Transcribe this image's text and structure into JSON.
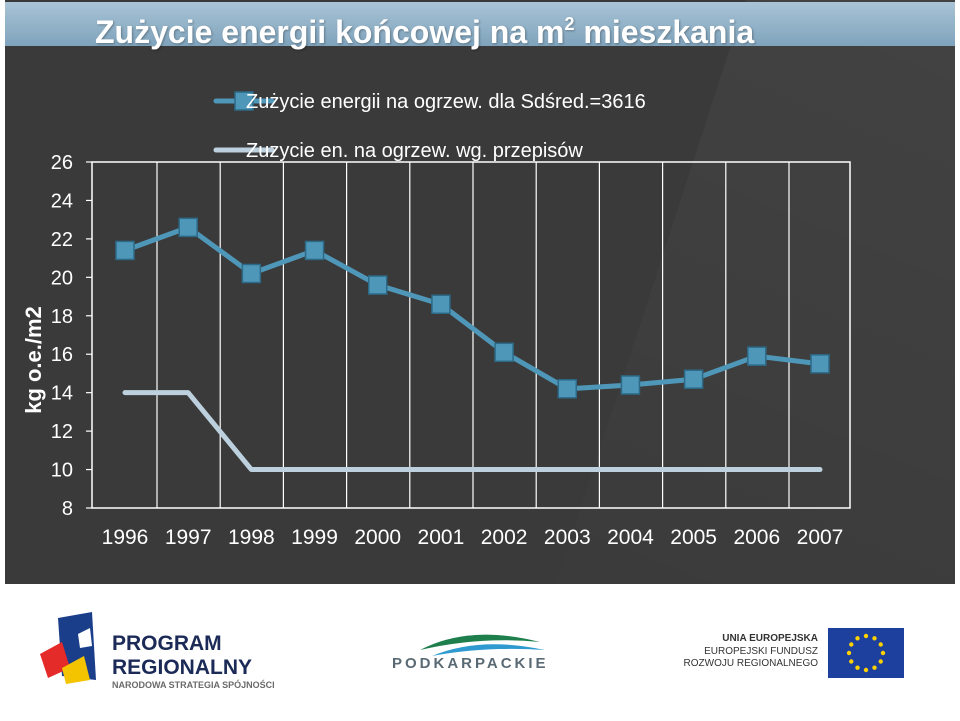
{
  "header": {
    "title": "Zużycie energii końcowej na",
    "title_unit_base": "m",
    "title_unit_exp": "2",
    "title_suffix": "mieszkania"
  },
  "chart_data": {
    "type": "line",
    "ylabel": "kg o.e./m2",
    "xlabel": "",
    "categories": [
      "1996",
      "1997",
      "1998",
      "1999",
      "2000",
      "2001",
      "2002",
      "2003",
      "2004",
      "2005",
      "2006",
      "2007"
    ],
    "yticks": [
      8,
      10,
      12,
      14,
      16,
      18,
      20,
      22,
      24,
      26
    ],
    "ylim": [
      8,
      26
    ],
    "grid": "vertical",
    "legend_position": "top-left",
    "series": [
      {
        "name": "Zużycie energii na ogrzew. dla Sdśred.=3616",
        "color": "#4f97b8",
        "marker": "square",
        "values": [
          21.4,
          22.6,
          20.2,
          21.4,
          19.6,
          18.6,
          16.1,
          14.2,
          14.4,
          14.7,
          15.9,
          15.5
        ]
      },
      {
        "name": "Zuzycie en. na ogrzew. wg. przepisów",
        "color": "#bcd1dd",
        "marker": "none",
        "values": [
          14,
          14,
          10,
          10,
          10,
          10,
          10,
          10,
          10,
          10,
          10,
          10
        ]
      }
    ]
  },
  "footer": {
    "logo_left_line1": "PROGRAM",
    "logo_left_line2": "REGIONALNY",
    "logo_left_line3": "NARODOWA STRATEGIA SPÓJNOŚCI",
    "logo_center": "PODKARPACKIE",
    "logo_right_line1": "UNIA EUROPEJSKA",
    "logo_right_line2": "EUROPEJSKI FUNDUSZ",
    "logo_right_line3": "ROZWOJU REGIONALNEGO"
  }
}
